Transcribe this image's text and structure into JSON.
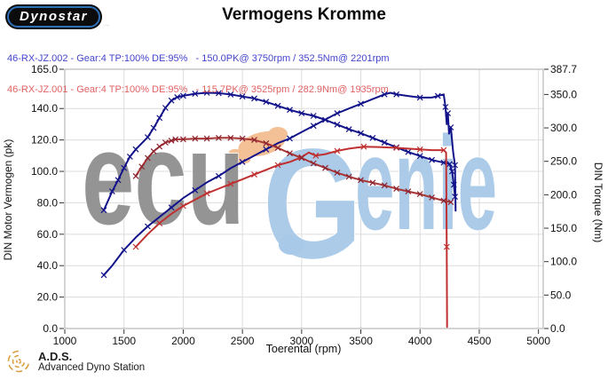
{
  "header": {
    "logo_text": "Dynostar",
    "logo_subtext": "...",
    "title": "Vermogens Kromme"
  },
  "legend": {
    "runs": [
      {
        "text": "46-RX-JZ.002 - Gear:4 TP:100% DE:95%   - 150.0PK@ 3750rpm / 352.5Nm@ 2201rpm",
        "color": "#4444cc"
      },
      {
        "text": "46-RX-JZ.001 - Gear:4 TP:100% DE:95%   - 115.7PK@ 3525rpm / 282.9Nm@ 1935rpm",
        "color": "#e06262"
      }
    ]
  },
  "watermark": {
    "text_gray": "ecu",
    "text_blue_g": "G",
    "text_blue_rest": "enie"
  },
  "colors": {
    "run_002_curve": "#12128a",
    "run_001_curve": "#c03030",
    "legend_blue": "#4444cc",
    "legend_red": "#e06262",
    "watermark_gray": "#8f8f8f",
    "watermark_blue": "#a8c9e8",
    "watermark_orange": "#f4c096",
    "ads_gold": "#d9a040",
    "grid": "#dcdcdc"
  },
  "footer": {
    "ads_abbr": "A.D.S.",
    "ads_name": "Advanced Dyno Station"
  },
  "chart_data": {
    "type": "line",
    "title": "Vermogens Kromme",
    "xlabel": "Toerental (rpm)",
    "ylabel_left": "DIN Motor Vermogen (pk)",
    "ylabel_right": "DIN Torque (Nm)",
    "grid": true,
    "grid_color": "#dcdcdc",
    "frame_color": "#a8a8a8",
    "tick_color": "#333333",
    "xlim": [
      1000,
      5040
    ],
    "y_left": {
      "max": 165,
      "ticks": [
        [
          0,
          "0.0"
        ],
        [
          20,
          "20.0"
        ],
        [
          40,
          "40.0"
        ],
        [
          60,
          "60.0"
        ],
        [
          80,
          "80.0"
        ],
        [
          100,
          "100.0"
        ],
        [
          120,
          "120.0"
        ],
        [
          140,
          "140.0"
        ],
        [
          165,
          "165.0"
        ]
      ]
    },
    "y_right": {
      "max": 387.7,
      "ticks": [
        [
          0,
          "0.0"
        ],
        [
          50,
          "50.0"
        ],
        [
          100,
          "100.0"
        ],
        [
          150,
          "150.0"
        ],
        [
          200,
          "200.0"
        ],
        [
          250,
          "250.0"
        ],
        [
          300,
          "300.0"
        ],
        [
          350,
          "350.0"
        ],
        [
          387.7,
          "387.7"
        ]
      ]
    },
    "x_ticks": [
      [
        1000,
        "1000"
      ],
      [
        1500,
        "1500"
      ],
      [
        2000,
        "2000"
      ],
      [
        2500,
        "2500"
      ],
      [
        3000,
        "3000"
      ],
      [
        3500,
        "3500"
      ],
      [
        4000,
        "4000"
      ],
      [
        4500,
        "4500"
      ],
      [
        5000,
        "5000"
      ]
    ],
    "x_grid": [
      1500,
      2000,
      2500,
      3000,
      3500,
      4000,
      4500,
      5000
    ],
    "y_grid": [
      20,
      40,
      60,
      80,
      100,
      120,
      140
    ],
    "series": [
      {
        "name": "46-RX-JZ.002 vermogen (pk)",
        "axis": "left",
        "color": "#12128a",
        "marker_every": 2,
        "marker_color": "#12128a",
        "width": 2,
        "peak": "150.0PK@ 3750rpm",
        "points": [
          [
            1330,
            34
          ],
          [
            1400,
            40
          ],
          [
            1500,
            50
          ],
          [
            1600,
            58
          ],
          [
            1700,
            65
          ],
          [
            1800,
            71
          ],
          [
            1900,
            77
          ],
          [
            2000,
            83
          ],
          [
            2100,
            88
          ],
          [
            2200,
            93
          ],
          [
            2300,
            97
          ],
          [
            2400,
            102
          ],
          [
            2500,
            106
          ],
          [
            2600,
            110
          ],
          [
            2700,
            114
          ],
          [
            2800,
            118
          ],
          [
            2900,
            121
          ],
          [
            3000,
            125
          ],
          [
            3100,
            129
          ],
          [
            3200,
            133
          ],
          [
            3300,
            137
          ],
          [
            3400,
            140
          ],
          [
            3500,
            143
          ],
          [
            3600,
            146
          ],
          [
            3700,
            149
          ],
          [
            3750,
            150
          ],
          [
            3800,
            149
          ],
          [
            3900,
            148
          ],
          [
            4000,
            147
          ],
          [
            4100,
            147
          ],
          [
            4150,
            148
          ],
          [
            4200,
            149
          ],
          [
            4215,
            141
          ],
          [
            4225,
            130
          ],
          [
            4235,
            137
          ],
          [
            4245,
            124
          ],
          [
            4260,
            128
          ],
          [
            4280,
            112
          ],
          [
            4295,
            104
          ],
          [
            4300,
            75
          ]
        ]
      },
      {
        "name": "46-RX-JZ.002 koppel (Nm)",
        "axis": "right",
        "color": "#12128a",
        "marker_every": 1,
        "marker_color": "#12128a",
        "width": 2,
        "peak": "352.5Nm@ 2201rpm",
        "points": [
          [
            1330,
            177
          ],
          [
            1400,
            205
          ],
          [
            1450,
            222
          ],
          [
            1500,
            240
          ],
          [
            1550,
            257
          ],
          [
            1600,
            268
          ],
          [
            1700,
            286
          ],
          [
            1750,
            300
          ],
          [
            1800,
            315
          ],
          [
            1850,
            330
          ],
          [
            1900,
            341
          ],
          [
            1950,
            346
          ],
          [
            2000,
            348
          ],
          [
            2100,
            351
          ],
          [
            2200,
            352.5
          ],
          [
            2300,
            352
          ],
          [
            2400,
            350
          ],
          [
            2500,
            347
          ],
          [
            2600,
            344
          ],
          [
            2700,
            339
          ],
          [
            2800,
            333
          ],
          [
            2900,
            327
          ],
          [
            3000,
            322
          ],
          [
            3100,
            318
          ],
          [
            3200,
            312
          ],
          [
            3300,
            305
          ],
          [
            3400,
            298
          ],
          [
            3500,
            292
          ],
          [
            3600,
            285
          ],
          [
            3700,
            278
          ],
          [
            3800,
            271
          ],
          [
            3900,
            264
          ],
          [
            4000,
            258
          ],
          [
            4100,
            252
          ],
          [
            4200,
            248
          ],
          [
            4250,
            246
          ],
          [
            4270,
            235
          ],
          [
            4285,
            215
          ],
          [
            4295,
            197
          ]
        ]
      },
      {
        "name": "46-RX-JZ.001 vermogen (pk)",
        "axis": "left",
        "color": "#c03030",
        "marker_every": 2,
        "marker_color": "#c03030",
        "width": 2,
        "peak": "115.7PK@ 3525rpm",
        "points": [
          [
            1600,
            52
          ],
          [
            1700,
            60
          ],
          [
            1800,
            67
          ],
          [
            1900,
            73
          ],
          [
            2000,
            78
          ],
          [
            2100,
            82
          ],
          [
            2200,
            86
          ],
          [
            2300,
            89
          ],
          [
            2400,
            92
          ],
          [
            2500,
            95
          ],
          [
            2600,
            98
          ],
          [
            2700,
            101
          ],
          [
            2800,
            104
          ],
          [
            2900,
            106
          ],
          [
            3000,
            109
          ],
          [
            3060,
            112
          ],
          [
            3120,
            110
          ],
          [
            3200,
            111
          ],
          [
            3300,
            113
          ],
          [
            3400,
            114.5
          ],
          [
            3525,
            115.7
          ],
          [
            3650,
            115.5
          ],
          [
            3800,
            115
          ],
          [
            3900,
            114.5
          ],
          [
            4000,
            114
          ],
          [
            4100,
            113.5
          ],
          [
            4200,
            113.5
          ],
          [
            4220,
            112
          ],
          [
            4225,
            52
          ],
          [
            4228,
            1
          ]
        ]
      },
      {
        "name": "46-RX-JZ.001 koppel (Nm)",
        "axis": "right",
        "color": "#a83434",
        "marker_every": 1,
        "marker_color": "#8b2430",
        "width": 2,
        "peak": "282.9Nm@ 1935rpm",
        "points": [
          [
            1600,
            228
          ],
          [
            1650,
            242
          ],
          [
            1700,
            255
          ],
          [
            1750,
            265
          ],
          [
            1800,
            272
          ],
          [
            1850,
            278
          ],
          [
            1900,
            281
          ],
          [
            1935,
            283
          ],
          [
            2000,
            283
          ],
          [
            2100,
            284
          ],
          [
            2200,
            284
          ],
          [
            2300,
            285
          ],
          [
            2400,
            285
          ],
          [
            2500,
            284
          ],
          [
            2600,
            282
          ],
          [
            2700,
            277
          ],
          [
            2800,
            270
          ],
          [
            2900,
            262
          ],
          [
            3000,
            255
          ],
          [
            3100,
            247
          ],
          [
            3200,
            240
          ],
          [
            3300,
            233
          ],
          [
            3400,
            227
          ],
          [
            3500,
            222
          ],
          [
            3600,
            218
          ],
          [
            3700,
            214
          ],
          [
            3800,
            209
          ],
          [
            3900,
            205
          ],
          [
            4000,
            201
          ],
          [
            4100,
            196
          ],
          [
            4200,
            191
          ],
          [
            4260,
            189
          ]
        ]
      }
    ]
  }
}
